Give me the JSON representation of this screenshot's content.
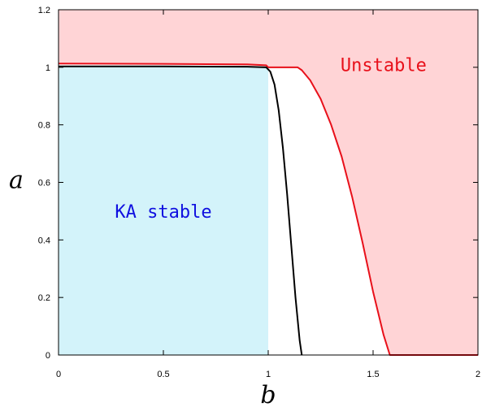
{
  "chart_data": {
    "type": "line",
    "title": "",
    "xlabel": "b",
    "ylabel": "a",
    "xlim": [
      0,
      2
    ],
    "ylim": [
      0,
      1.2
    ],
    "xticks": [
      0,
      0.5,
      1,
      1.5,
      2
    ],
    "xtick_labels": [
      "0",
      "0.5",
      "1",
      "1.5",
      "2"
    ],
    "yticks": [
      0,
      0.2,
      0.4,
      0.6,
      0.8,
      1,
      1.2
    ],
    "ytick_labels": [
      "0",
      "0.2",
      "0.4",
      "0.6",
      "0.8",
      "1",
      "1.2"
    ],
    "grid": false,
    "regions": [
      {
        "label": "Unstable",
        "fill_color": "#ffd4d6",
        "text_color": "#e8101a",
        "label_at": [
          1.55,
          1.01
        ]
      },
      {
        "label": "KA stable",
        "fill_color": "#d3f3fa",
        "text_color": "#1010e0",
        "label_at": [
          0.5,
          0.5
        ],
        "x_range": [
          0,
          1
        ],
        "y_max": 1.003
      }
    ],
    "series": [
      {
        "color": "#e8101a",
        "x": [
          0,
          0.5,
          0.9,
          0.99,
          1.0,
          1.14,
          1.16,
          1.2,
          1.25,
          1.3,
          1.35,
          1.4,
          1.45,
          1.5,
          1.55,
          1.58,
          2.0
        ],
        "y": [
          1.013,
          1.012,
          1.01,
          1.007,
          1.0,
          1.0,
          0.99,
          0.955,
          0.89,
          0.8,
          0.69,
          0.55,
          0.39,
          0.22,
          0.07,
          0.0,
          0.0
        ]
      },
      {
        "color": "#000000",
        "x": [
          0,
          0.5,
          0.9,
          0.99,
          1.01,
          1.03,
          1.05,
          1.07,
          1.09,
          1.11,
          1.13,
          1.15,
          1.16
        ],
        "y": [
          1.003,
          1.003,
          1.002,
          1.0,
          0.985,
          0.94,
          0.85,
          0.72,
          0.56,
          0.38,
          0.2,
          0.05,
          0.0
        ]
      }
    ]
  }
}
